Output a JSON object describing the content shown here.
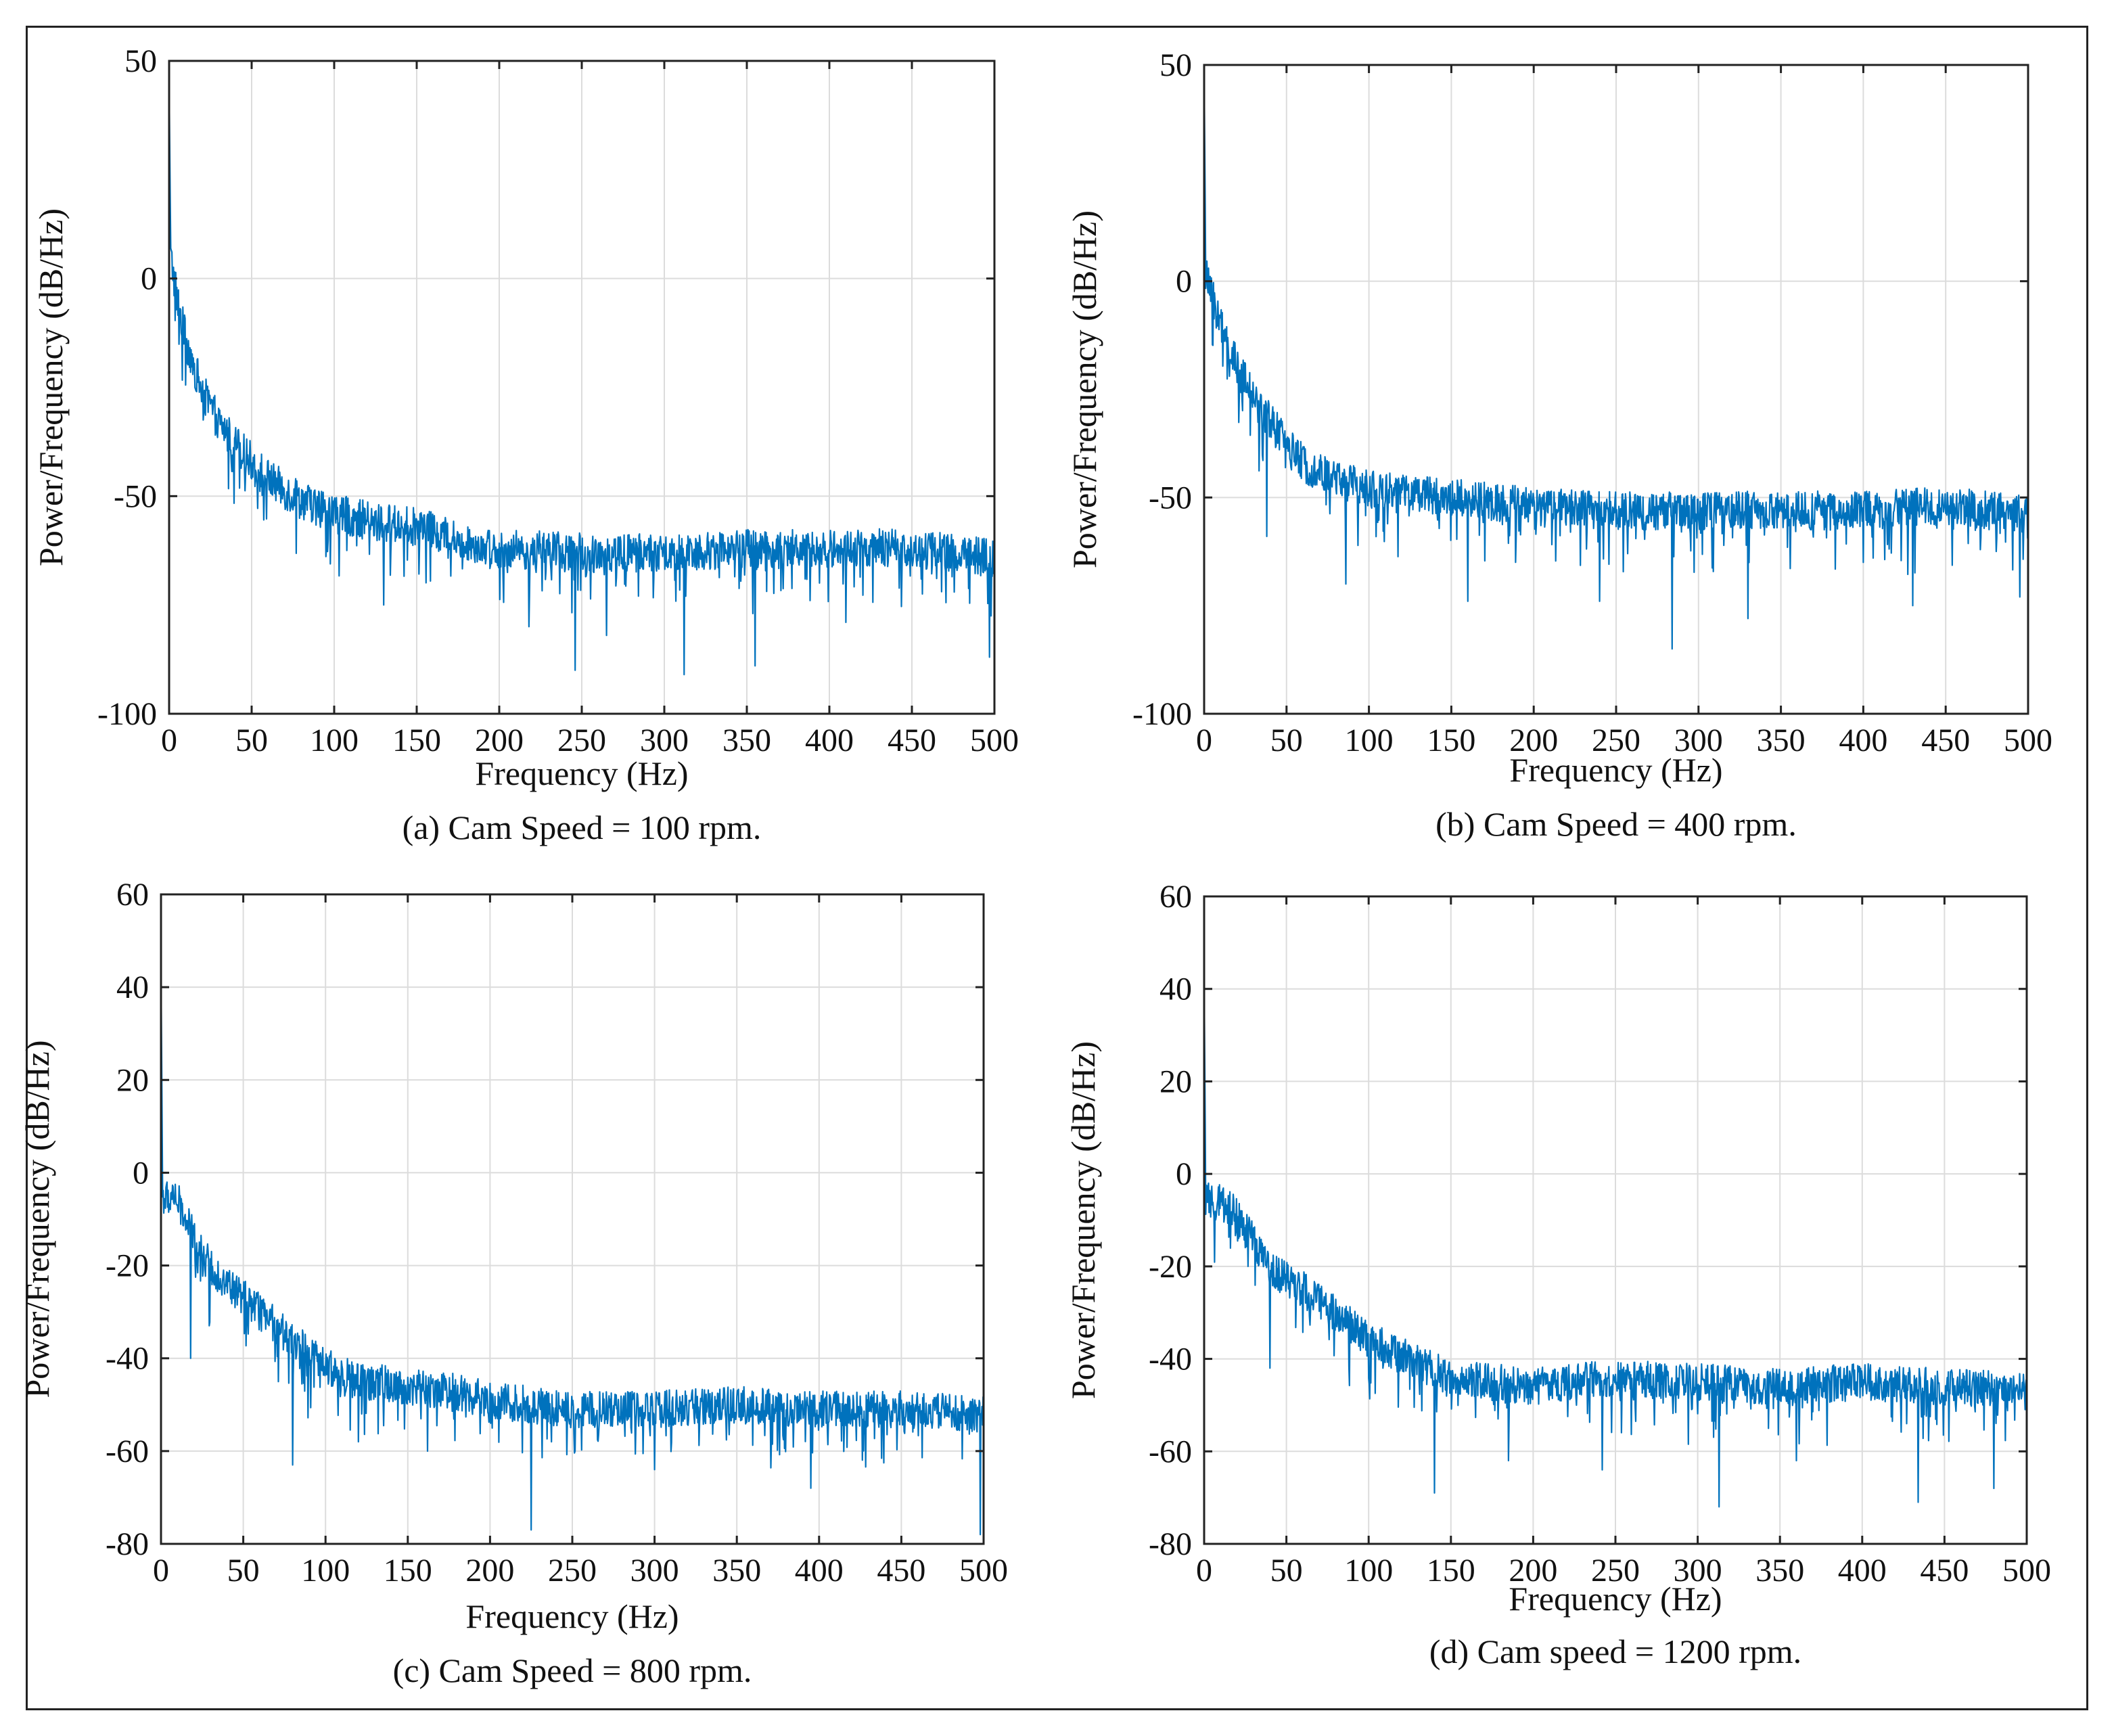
{
  "figure": {
    "line_color": "#0072BD"
  },
  "chart_data": [
    {
      "type": "line",
      "id": "a",
      "caption": "(a) Cam Speed = 100 rpm.",
      "xlabel": "Frequency (Hz)",
      "ylabel": "Power/Frequency (dB/Hz)",
      "xlim": [
        0,
        500
      ],
      "ylim": [
        -100,
        50
      ],
      "xticks": [
        0,
        50,
        100,
        150,
        200,
        250,
        300,
        350,
        400,
        450,
        500
      ],
      "yticks": [
        -100,
        -50,
        0,
        50
      ],
      "grid": true,
      "trend": {
        "x": [
          0,
          1,
          3,
          5,
          10,
          20,
          30,
          40,
          50,
          60,
          75,
          100,
          125,
          150,
          175,
          200,
          250,
          300,
          350,
          400,
          450,
          500
        ],
        "y": [
          45,
          5,
          0,
          -5,
          -14,
          -26,
          -33,
          -38,
          -42,
          -46,
          -50,
          -54,
          -56,
          -57,
          -60,
          -62,
          -63,
          -63,
          -62,
          -62,
          -62,
          -64
        ]
      },
      "noise": 4.5,
      "dips": [
        [
          246,
          -90
        ],
        [
          312,
          -91
        ],
        [
          355,
          -89
        ],
        [
          497,
          -87
        ],
        [
          218,
          -80
        ],
        [
          130,
          -75
        ],
        [
          410,
          -79
        ],
        [
          265,
          -82
        ]
      ]
    },
    {
      "type": "line",
      "id": "b",
      "caption": "(b) Cam Speed = 400 rpm.",
      "xlabel": "Frequency (Hz)",
      "ylabel": "Power/Frequency (dB/Hz)",
      "xlim": [
        0,
        500
      ],
      "ylim": [
        -100,
        50
      ],
      "xticks": [
        0,
        50,
        100,
        150,
        200,
        250,
        300,
        350,
        400,
        450,
        500
      ],
      "yticks": [
        -100,
        -50,
        0,
        50
      ],
      "grid": true,
      "trend": {
        "x": [
          0,
          1,
          3,
          5,
          10,
          20,
          30,
          40,
          50,
          60,
          75,
          100,
          125,
          150,
          175,
          200,
          250,
          300,
          350,
          400,
          450,
          500
        ],
        "y": [
          48,
          2,
          -2,
          -4,
          -10,
          -20,
          -27,
          -32,
          -38,
          -42,
          -45,
          -48,
          -49,
          -50,
          -51,
          -52,
          -53,
          -53,
          -53,
          -53,
          -52,
          -54
        ]
      },
      "noise": 4.5,
      "dips": [
        [
          284,
          -85
        ],
        [
          86,
          -70
        ],
        [
          38,
          -59
        ],
        [
          160,
          -74
        ],
        [
          330,
          -78
        ],
        [
          430,
          -75
        ],
        [
          495,
          -73
        ],
        [
          240,
          -74
        ]
      ]
    },
    {
      "type": "line",
      "id": "c",
      "caption": "(c) Cam Speed = 800 rpm.",
      "xlabel": "Frequency (Hz)",
      "ylabel": "Power/Frequency (dB/Hz)",
      "xlim": [
        0,
        500
      ],
      "ylim": [
        -80,
        60
      ],
      "xticks": [
        0,
        50,
        100,
        150,
        200,
        250,
        300,
        350,
        400,
        450,
        500
      ],
      "yticks": [
        -80,
        -60,
        -40,
        -20,
        0,
        20,
        40,
        60
      ],
      "grid": true,
      "trend": {
        "x": [
          0,
          1,
          3,
          8,
          15,
          25,
          40,
          60,
          80,
          100,
          125,
          150,
          175,
          200,
          250,
          300,
          350,
          400,
          450,
          500
        ],
        "y": [
          44,
          -5,
          -6,
          -4,
          -10,
          -18,
          -24,
          -30,
          -36,
          -42,
          -45,
          -46,
          -47,
          -49,
          -51,
          -51,
          -50,
          -51,
          -51,
          -52
        ]
      },
      "noise": 4,
      "dips": [
        [
          225,
          -77
        ],
        [
          80,
          -63
        ],
        [
          18,
          -40
        ],
        [
          162,
          -60
        ],
        [
          300,
          -64
        ],
        [
          395,
          -68
        ],
        [
          498,
          -78
        ],
        [
          120,
          -58
        ]
      ]
    },
    {
      "type": "line",
      "id": "d",
      "caption": "(d) Cam speed = 1200 rpm.",
      "xlabel": "Frequency (Hz)",
      "ylabel": "Power/Frequency (dB/Hz)",
      "xlim": [
        0,
        500
      ],
      "ylim": [
        -80,
        60
      ],
      "xticks": [
        0,
        50,
        100,
        150,
        200,
        250,
        300,
        350,
        400,
        450,
        500
      ],
      "yticks": [
        -80,
        -60,
        -40,
        -20,
        0,
        20,
        40,
        60
      ],
      "grid": true,
      "trend": {
        "x": [
          0,
          1,
          3,
          8,
          15,
          25,
          40,
          60,
          80,
          100,
          125,
          150,
          175,
          200,
          250,
          300,
          350,
          400,
          450,
          500
        ],
        "y": [
          42,
          -5,
          -6,
          -6,
          -7,
          -12,
          -20,
          -25,
          -30,
          -36,
          -40,
          -44,
          -45,
          -46,
          -44,
          -45,
          -46,
          -45,
          -46,
          -47
        ]
      },
      "noise": 4,
      "dips": [
        [
          313,
          -72
        ],
        [
          140,
          -69
        ],
        [
          434,
          -71
        ],
        [
          40,
          -42
        ],
        [
          185,
          -62
        ],
        [
          242,
          -64
        ],
        [
          480,
          -68
        ],
        [
          360,
          -62
        ]
      ]
    }
  ]
}
